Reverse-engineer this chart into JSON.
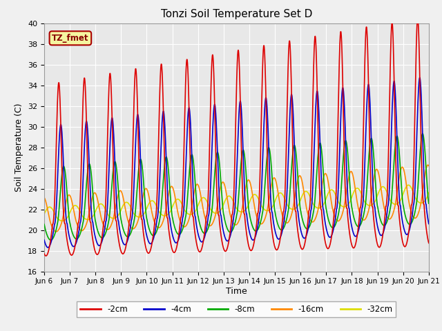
{
  "title": "Tonzi Soil Temperature Set D",
  "ylabel": "Soil Temperature (C)",
  "xlabel": "Time",
  "ylim": [
    16,
    40
  ],
  "xlim": [
    0,
    360
  ],
  "fig_bg": "#f0f0f0",
  "plot_bg": "#e8e8e8",
  "grid_color": "#ffffff",
  "annotation_text": "TZ_fmet",
  "annotation_bg": "#f5f5a0",
  "annotation_border": "#aa0000",
  "xtick_labels": [
    "Jun 6",
    "Jun 7",
    "Jun 8",
    "Jun 9",
    "Jun 10",
    "Jun 11",
    "Jun 12",
    "Jun 13",
    "Jun 14",
    "Jun 15",
    "Jun 16",
    "Jun 17",
    "Jun 18",
    "Jun 19",
    "Jun 20",
    "Jun 21"
  ],
  "xtick_positions": [
    0,
    24,
    48,
    72,
    96,
    120,
    144,
    168,
    192,
    216,
    240,
    264,
    288,
    312,
    336,
    360
  ],
  "series": {
    "-2cm": {
      "color": "#dd0000",
      "lw": 1.2
    },
    "-4cm": {
      "color": "#0000cc",
      "lw": 1.2
    },
    "-8cm": {
      "color": "#00aa00",
      "lw": 1.2
    },
    "-16cm": {
      "color": "#ff8800",
      "lw": 1.2
    },
    "-32cm": {
      "color": "#dddd00",
      "lw": 1.2
    }
  }
}
